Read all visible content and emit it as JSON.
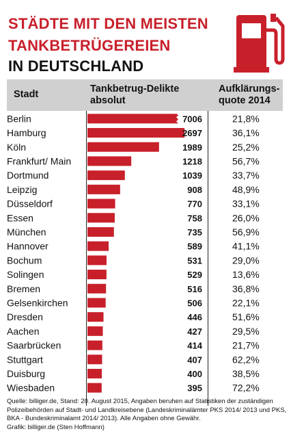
{
  "title_lines": [
    "STÄDTE MIT DEN MEISTEN",
    "TANKBETRÜGEREIEN",
    "IN DEUTSCHLAND"
  ],
  "colors": {
    "accent": "#c8202b",
    "header_bg": "#d0d0d0",
    "text": "#111111"
  },
  "icon": "fuel-pump-icon",
  "header": {
    "city": "Stadt",
    "absolute": [
      "Tankbetrug-Delikte",
      "absolut"
    ],
    "rate": [
      "Aufklärungs-",
      "quote 2014"
    ]
  },
  "chart_data": {
    "type": "bar",
    "orientation": "horizontal",
    "title": "STÄDTE MIT DEN MEISTEN TANKBETRÜGEREIEN IN DEUTSCHLAND",
    "categories": [
      "Berlin",
      "Hamburg",
      "Köln",
      "Frankfurt/ Main",
      "Dortmund",
      "Leipzig",
      "Düsseldorf",
      "Essen",
      "München",
      "Hannover",
      "Bochum",
      "Solingen",
      "Bremen",
      "Gelsenkirchen",
      "Dresden",
      "Aachen",
      "Saarbrücken",
      "Stuttgart",
      "Duisburg",
      "Wiesbaden"
    ],
    "values": [
      7006,
      2697,
      1989,
      1218,
      1039,
      908,
      770,
      758,
      735,
      589,
      531,
      529,
      516,
      506,
      446,
      427,
      414,
      407,
      400,
      395
    ],
    "value_labels": [
      "7006",
      "2697",
      "1989",
      "1218",
      "1039",
      "908",
      "770",
      "758",
      "735",
      "589",
      "531",
      "529",
      "516",
      "506",
      "446",
      "427",
      "414",
      "407",
      "400",
      "395"
    ],
    "rates": [
      "21,8%",
      "36,1%",
      "25,2%",
      "56,7%",
      "33,7%",
      "48,9%",
      "33,1%",
      "26,0%",
      "56,9%",
      "41,1%",
      "29,0%",
      "13,6%",
      "36,8%",
      "22,1%",
      "51,6%",
      "29,5%",
      "21,7%",
      "62,2%",
      "38,5%",
      "72,2%"
    ],
    "broken_axis_bars": [
      0
    ],
    "bar_color": "#c8202b"
  },
  "source_lines": [
    "Quelle: billiger.de, Stand: 20. August 2015, Angaben beruhen auf Statistiken der zuständigen",
    "Polizeibehörden auf Stadt- und Landkreisebene (Landeskriminalämter PKS 2014/ 2013 und PKS,",
    "BKA - Bundeskriminalamt 2014/ 2013). Alle Angaben ohne Gewähr.",
    "Grafik: billiger.de (Sten Hoffmann)"
  ]
}
